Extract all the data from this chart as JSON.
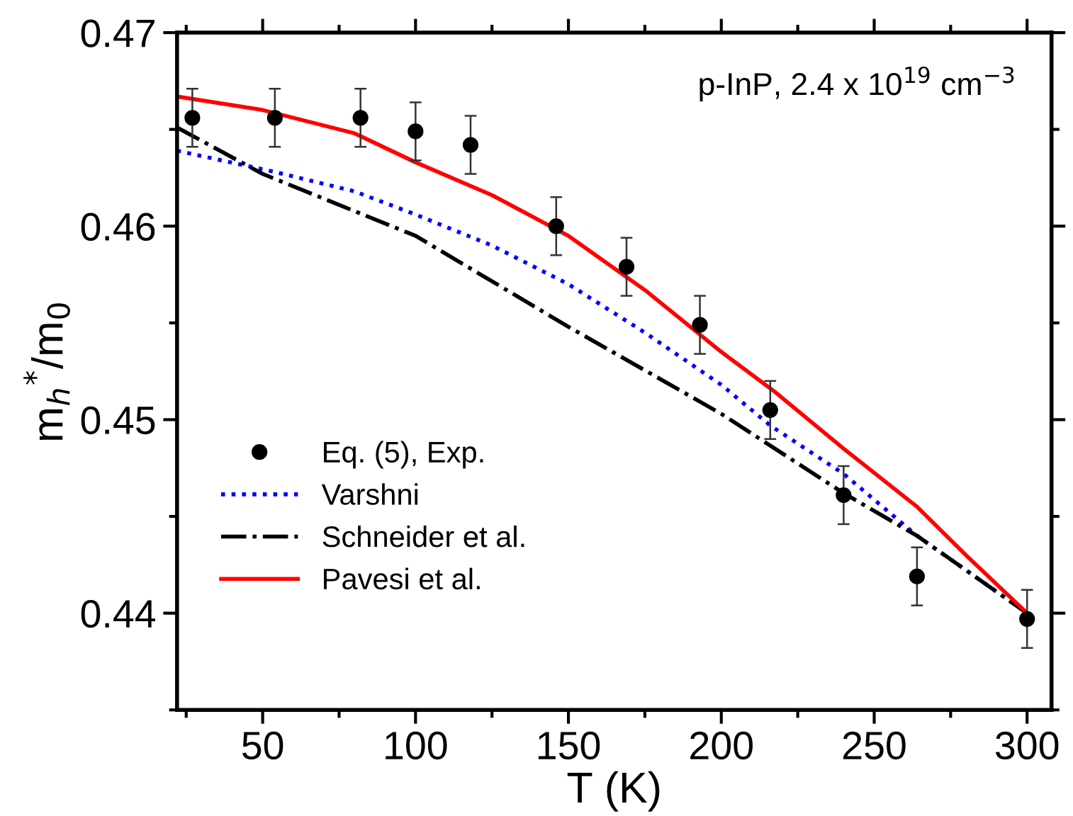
{
  "chart_data": {
    "type": "line",
    "xlabel": "T (K)",
    "ylabel": "m$_{h}$$^{*}$/m$_{0}$",
    "annotations": [
      "p-InP, 2.4 x 10$^{19}$ cm$^{−3}$"
    ],
    "xlim": [
      22,
      308
    ],
    "xticks": [
      50,
      100,
      150,
      200,
      250,
      300
    ],
    "ylim": [
      0.435,
      0.47
    ],
    "yticks": [
      0.44,
      0.45,
      0.46,
      0.47
    ],
    "grid": false,
    "legend": "bottom left",
    "series": [
      {
        "name": "Eq. (5), Exp.",
        "type": "scatter",
        "color": "#000000",
        "marker": "circle",
        "x": [
          27,
          54,
          82,
          100,
          118,
          146,
          169,
          193,
          216,
          240,
          264,
          300
        ],
        "values": [
          0.4656,
          0.4656,
          0.4656,
          0.4649,
          0.4642,
          0.46,
          0.4579,
          0.4549,
          0.4505,
          0.4461,
          0.4419,
          0.4397
        ],
        "errors": [
          0.0015,
          0.0015,
          0.0015,
          0.0015,
          0.0015,
          0.0015,
          0.0015,
          0.0015,
          0.0015,
          0.0015,
          0.0015,
          0.0015
        ]
      },
      {
        "name": "Varshni",
        "color": "#0000ff",
        "line_style": "dotted",
        "x": [
          22,
          54,
          80,
          100,
          125,
          150,
          175,
          200,
          216,
          240,
          264,
          300
        ],
        "values": [
          0.4639,
          0.4628,
          0.4618,
          0.4606,
          0.459,
          0.457,
          0.4545,
          0.4518,
          0.4497,
          0.4472,
          0.444,
          0.44
        ]
      },
      {
        "name": "Schneider et al.",
        "color": "#000000",
        "line_style": "dashdot",
        "x": [
          22,
          50,
          100,
          150,
          200,
          240,
          264,
          300
        ],
        "values": [
          0.4651,
          0.4627,
          0.4595,
          0.4548,
          0.4503,
          0.4462,
          0.444,
          0.44
        ]
      },
      {
        "name": "Pavesi et al.",
        "color": "#ff0000",
        "line_style": "solid",
        "x": [
          22,
          50,
          80,
          100,
          125,
          150,
          175,
          200,
          217,
          240,
          264,
          280,
          300
        ],
        "values": [
          0.4667,
          0.466,
          0.4648,
          0.4633,
          0.4616,
          0.4595,
          0.4567,
          0.4535,
          0.4515,
          0.4485,
          0.4455,
          0.443,
          0.44
        ]
      }
    ]
  }
}
